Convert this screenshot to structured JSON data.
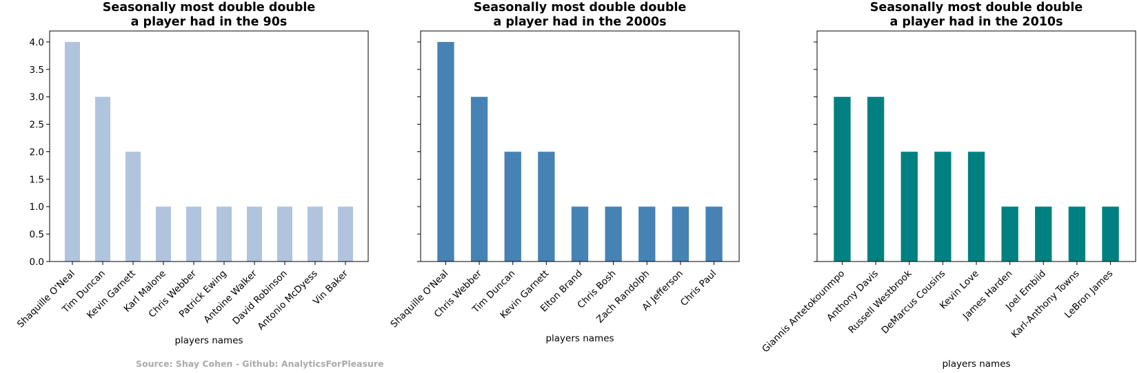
{
  "chart_data": [
    {
      "type": "bar",
      "title": "Seasonally most double double\na player had in the 90s",
      "xlabel": "players names",
      "ylabel": "",
      "ylim": [
        0,
        4.2
      ],
      "yticks": [
        "0.0",
        "0.5",
        "1.0",
        "1.5",
        "2.0",
        "2.5",
        "3.0",
        "3.5",
        "4.0"
      ],
      "color": "#b0c4de",
      "categories": [
        "Shaquille O'Neal",
        "Tim Duncan",
        "Kevin Garnett",
        "Karl Malone",
        "Chris Webber",
        "Patrick Ewing",
        "Antoine Walker",
        "David Robinson",
        "Antonio McDyess",
        "Vin Baker"
      ],
      "values": [
        4,
        3,
        2,
        1,
        1,
        1,
        1,
        1,
        1,
        1
      ]
    },
    {
      "type": "bar",
      "title": "Seasonally most double double\na player had in the 2000s",
      "xlabel": "players names",
      "ylabel": "",
      "ylim": [
        0,
        4.2
      ],
      "color": "#4682b4",
      "categories": [
        "Shaquille O'Neal",
        "Chris Webber",
        "Tim Duncan",
        "Kevin Garnett",
        "Elton Brand",
        "Chris Bosh",
        "Zach Randolph",
        "Al Jefferson",
        "Chris Paul"
      ],
      "values": [
        4,
        3,
        2,
        2,
        1,
        1,
        1,
        1,
        1
      ]
    },
    {
      "type": "bar",
      "title": "Seasonally most double double\na player had in the 2010s",
      "xlabel": "players names",
      "ylabel": "",
      "ylim": [
        0,
        4.2
      ],
      "color": "#008080",
      "categories": [
        "Giannis Antetokounmpo",
        "Anthony Davis",
        "Russell Westbrook",
        "DeMarcus Cousins",
        "Kevin Love",
        "James Harden",
        "Joel Embiid",
        "Karl-Anthony Towns",
        "LeBron James"
      ],
      "values": [
        3,
        3,
        2,
        2,
        2,
        1,
        1,
        1,
        1
      ]
    }
  ],
  "source_text": "Source: Shay Cohen - Github: AnalyticsForPleasure"
}
